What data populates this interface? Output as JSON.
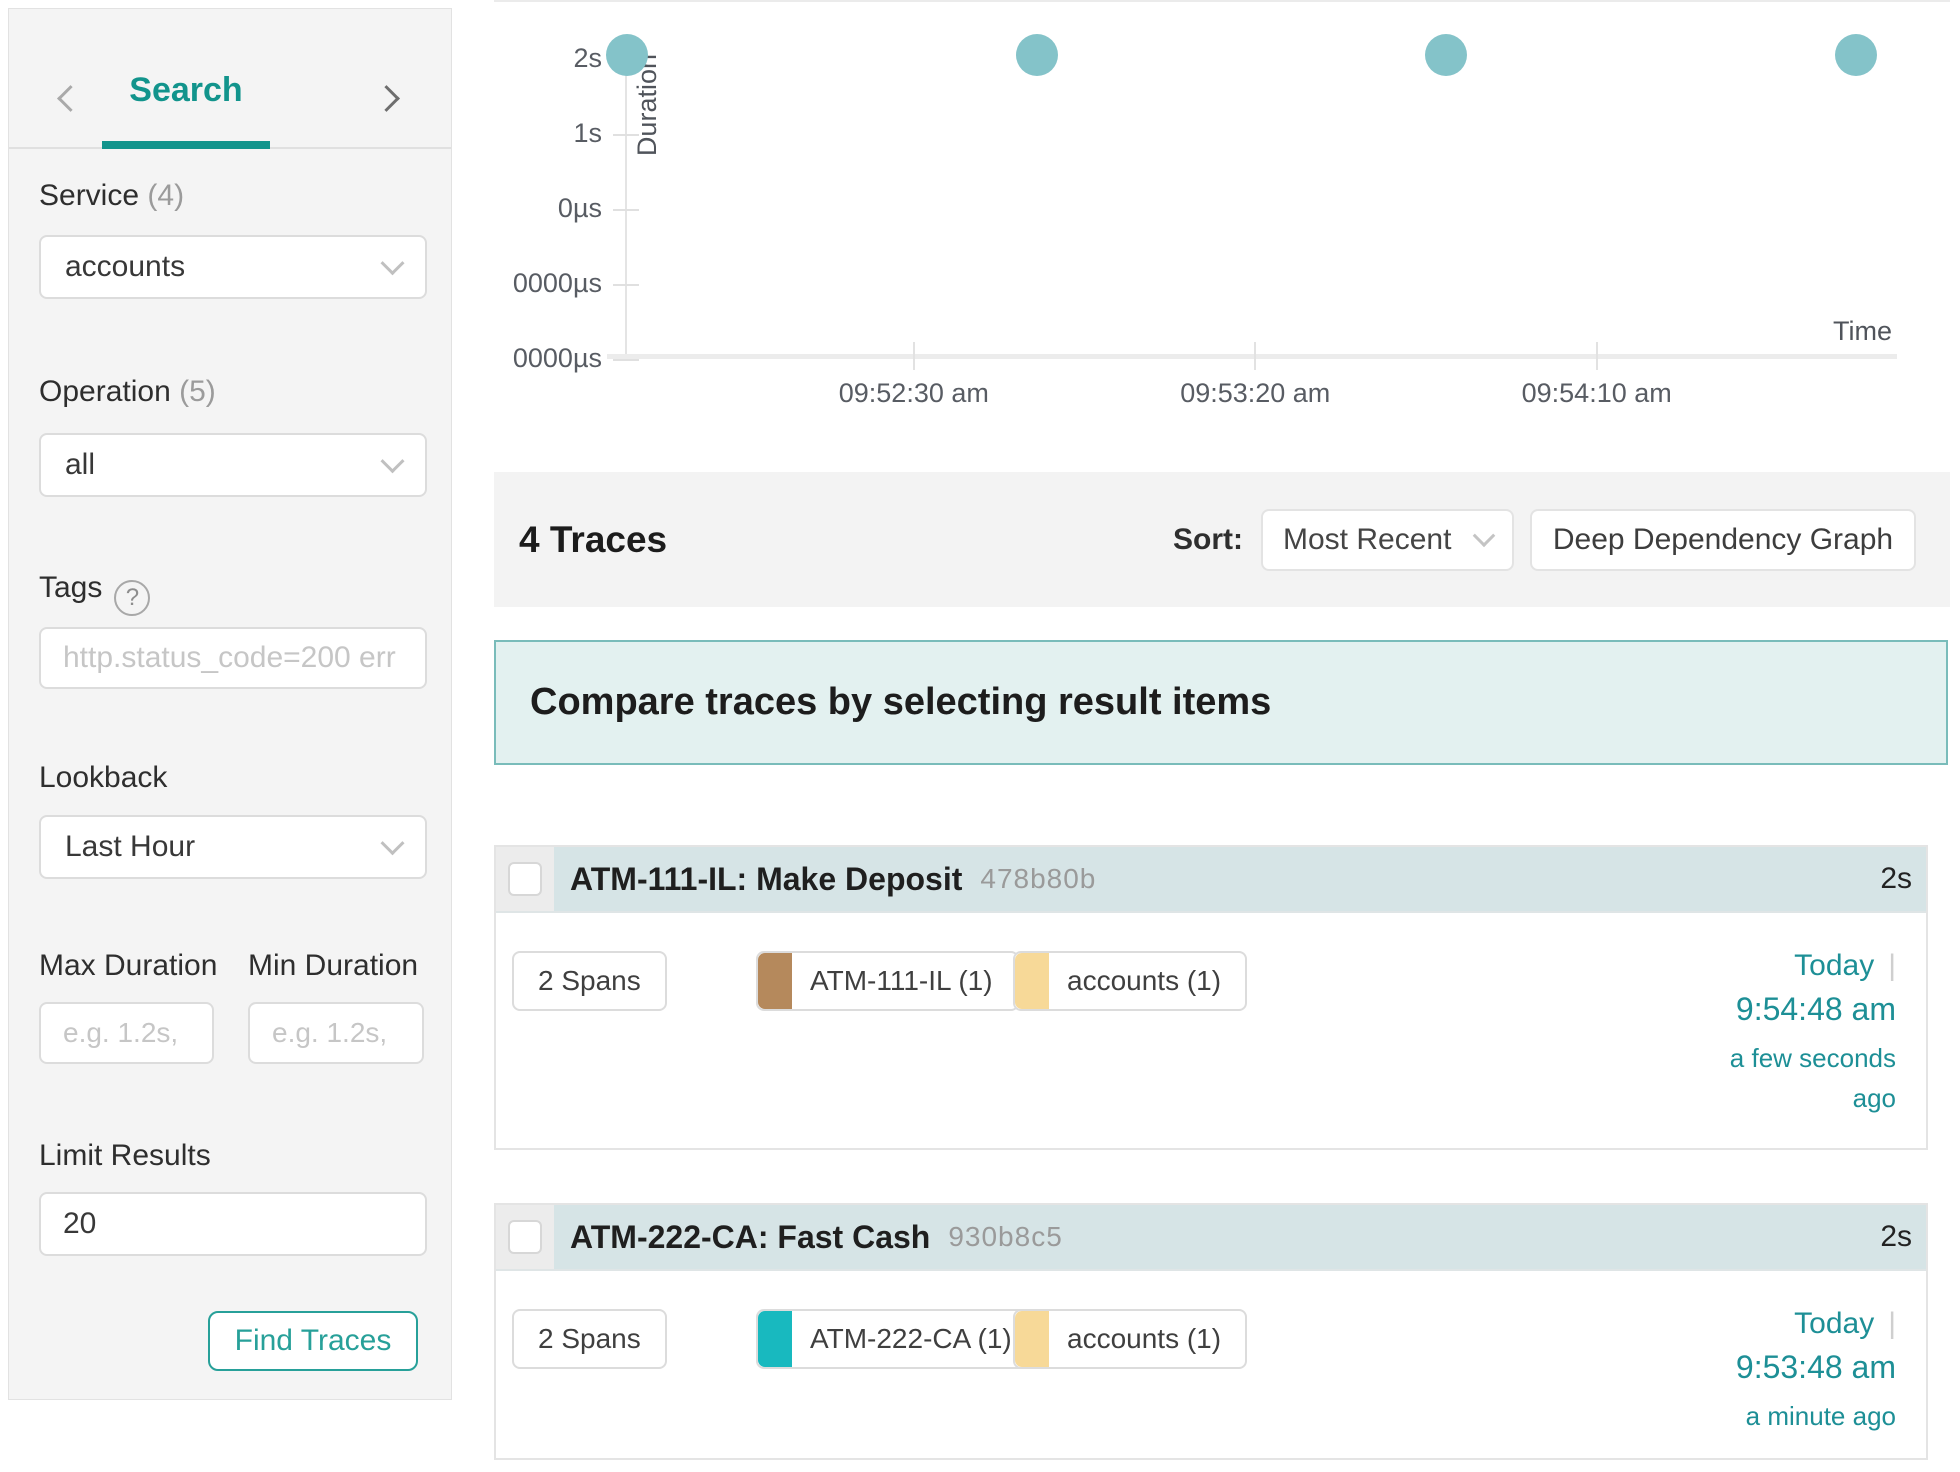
{
  "accent": "#12948c",
  "sidebar": {
    "nav": {
      "title": "Search"
    },
    "service": {
      "label": "Service",
      "count": "(4)",
      "value": "accounts"
    },
    "operation": {
      "label": "Operation",
      "count": "(5)",
      "value": "all"
    },
    "tags": {
      "label": "Tags",
      "help": "?",
      "placeholder": "http.status_code=200 err"
    },
    "lookback": {
      "label": "Lookback",
      "value": "Last Hour"
    },
    "max_duration": {
      "label": "Max Duration",
      "placeholder": "e.g. 1.2s,"
    },
    "min_duration": {
      "label": "Min Duration",
      "placeholder": "e.g. 1.2s,"
    },
    "limit": {
      "label": "Limit Results",
      "value": "20"
    },
    "find_button": "Find Traces"
  },
  "chart_data": {
    "type": "scatter",
    "xlabel": "Time",
    "ylabel": "Duration",
    "y_ticks": [
      "2s",
      "1s",
      "0µs",
      "0000µs",
      "0000µs"
    ],
    "x_ticks": [
      {
        "label": "09:52:30 am",
        "t": 42
      },
      {
        "label": "09:53:20 am",
        "t": 92
      },
      {
        "label": "09:54:10 am",
        "t": 142
      }
    ],
    "x_domain_seconds": 187,
    "points": [
      {
        "t": 0,
        "duration": "2s"
      },
      {
        "t": 60,
        "duration": "2s"
      },
      {
        "t": 120,
        "duration": "2s"
      },
      {
        "t": 180,
        "duration": "2s"
      }
    ],
    "point_color": "#84c3c9",
    "grid": false,
    "legend": false
  },
  "results": {
    "count": "4 Traces",
    "sort_label": "Sort:",
    "sort_value": "Most Recent",
    "ddg_button": "Deep Dependency Graph",
    "banner": "Compare traces by selecting result items"
  },
  "traces": [
    {
      "title": "ATM-111-IL: Make Deposit",
      "trace_id": "478b80b",
      "duration": "2s",
      "span_count": "2 Spans",
      "services": [
        {
          "label": "ATM-111-IL (1)",
          "color": "#b5895c"
        },
        {
          "label": "accounts (1)",
          "color": "#f7d998"
        }
      ],
      "date": {
        "day": "Today",
        "separator": "|",
        "time": "9:54:48 am",
        "relative": "a few seconds ago"
      }
    },
    {
      "title": "ATM-222-CA: Fast Cash",
      "trace_id": "930b8c5",
      "duration": "2s",
      "span_count": "2 Spans",
      "services": [
        {
          "label": "ATM-222-CA (1)",
          "color": "#18b9bf"
        },
        {
          "label": "accounts (1)",
          "color": "#f7d998"
        }
      ],
      "date": {
        "day": "Today",
        "separator": "|",
        "time": "9:53:48 am",
        "relative": "a minute ago"
      }
    }
  ]
}
